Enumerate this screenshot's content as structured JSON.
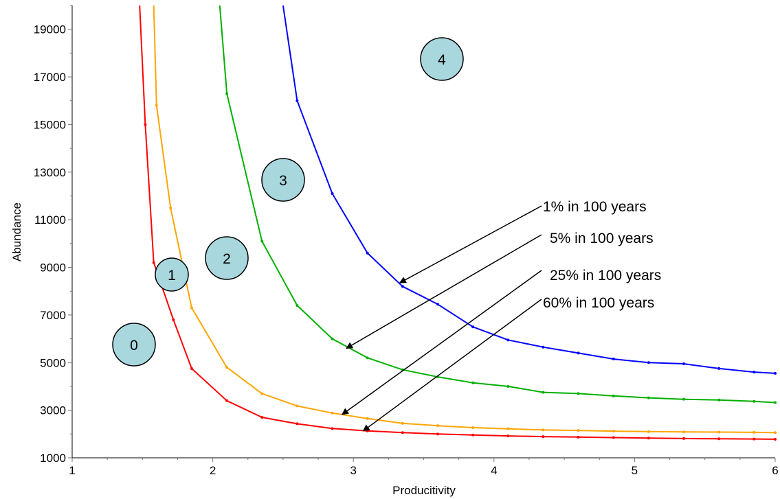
{
  "chart_data": {
    "type": "line",
    "title": "",
    "xlabel": "Producitivity",
    "ylabel": "Abundance",
    "xlim": [
      1,
      6
    ],
    "ylim": [
      1000,
      20000
    ],
    "x_ticks": [
      "1",
      "2",
      "3",
      "4",
      "5",
      "6"
    ],
    "y_ticks": [
      "1000",
      "3000",
      "5000",
      "7000",
      "9000",
      "11000",
      "13000",
      "15000",
      "17000",
      "19000"
    ],
    "grid": false,
    "series": [
      {
        "color": "#ff0000",
        "points": [
          [
            1.48,
            20000
          ],
          [
            1.52,
            15000
          ],
          [
            1.58,
            9200
          ],
          [
            1.72,
            6800
          ],
          [
            1.85,
            4750
          ],
          [
            2.1,
            3400
          ],
          [
            2.35,
            2700
          ],
          [
            2.6,
            2430
          ],
          [
            2.85,
            2230
          ],
          [
            3.1,
            2130
          ],
          [
            3.35,
            2060
          ],
          [
            3.6,
            2000
          ],
          [
            3.85,
            1960
          ],
          [
            4.1,
            1920
          ],
          [
            4.35,
            1890
          ],
          [
            4.6,
            1870
          ],
          [
            4.85,
            1850
          ],
          [
            5.1,
            1830
          ],
          [
            5.35,
            1810
          ],
          [
            5.6,
            1800
          ],
          [
            5.85,
            1790
          ],
          [
            6.0,
            1780
          ]
        ]
      },
      {
        "color": "#ffa500",
        "points": [
          [
            1.58,
            20000
          ],
          [
            1.6,
            15800
          ],
          [
            1.7,
            11500
          ],
          [
            1.85,
            7300
          ],
          [
            2.1,
            4800
          ],
          [
            2.35,
            3700
          ],
          [
            2.6,
            3180
          ],
          [
            2.85,
            2880
          ],
          [
            3.1,
            2650
          ],
          [
            3.35,
            2450
          ],
          [
            3.6,
            2350
          ],
          [
            3.85,
            2270
          ],
          [
            4.1,
            2220
          ],
          [
            4.35,
            2170
          ],
          [
            4.6,
            2150
          ],
          [
            4.85,
            2120
          ],
          [
            5.1,
            2100
          ],
          [
            5.35,
            2090
          ],
          [
            5.6,
            2080
          ],
          [
            5.85,
            2070
          ],
          [
            6.0,
            2060
          ]
        ]
      },
      {
        "color": "#00b000",
        "points": [
          [
            2.05,
            20000
          ],
          [
            2.1,
            16300
          ],
          [
            2.35,
            10100
          ],
          [
            2.6,
            7400
          ],
          [
            2.85,
            6000
          ],
          [
            3.1,
            5200
          ],
          [
            3.35,
            4700
          ],
          [
            3.6,
            4400
          ],
          [
            3.85,
            4150
          ],
          [
            4.1,
            4000
          ],
          [
            4.35,
            3750
          ],
          [
            4.6,
            3700
          ],
          [
            4.85,
            3600
          ],
          [
            5.1,
            3520
          ],
          [
            5.35,
            3460
          ],
          [
            5.6,
            3430
          ],
          [
            5.85,
            3370
          ],
          [
            6.0,
            3320
          ]
        ]
      },
      {
        "color": "#0000ff",
        "points": [
          [
            2.5,
            20000
          ],
          [
            2.6,
            16000
          ],
          [
            2.85,
            12100
          ],
          [
            3.1,
            9600
          ],
          [
            3.35,
            8200
          ],
          [
            3.6,
            7450
          ],
          [
            3.85,
            6500
          ],
          [
            4.1,
            5950
          ],
          [
            4.35,
            5650
          ],
          [
            4.6,
            5400
          ],
          [
            4.85,
            5150
          ],
          [
            5.1,
            5000
          ],
          [
            5.35,
            4950
          ],
          [
            5.6,
            4750
          ],
          [
            5.85,
            4600
          ],
          [
            6.0,
            4550
          ]
        ]
      }
    ],
    "annotations": [
      {
        "text": "1%  in 100 years",
        "tip": [
          3.33,
          8350
        ]
      },
      {
        "text": "5%  in 100 years",
        "tip": [
          2.95,
          5600
        ]
      },
      {
        "text": "25%  in 100 years",
        "tip": [
          2.92,
          2820
        ]
      },
      {
        "text": "60%  in 100 years",
        "tip": [
          3.07,
          2130
        ]
      }
    ],
    "zones": [
      {
        "label": "0"
      },
      {
        "label": "1"
      },
      {
        "label": "2"
      },
      {
        "label": "3"
      },
      {
        "label": "4"
      }
    ],
    "zone_fill": "#a8d8de"
  }
}
